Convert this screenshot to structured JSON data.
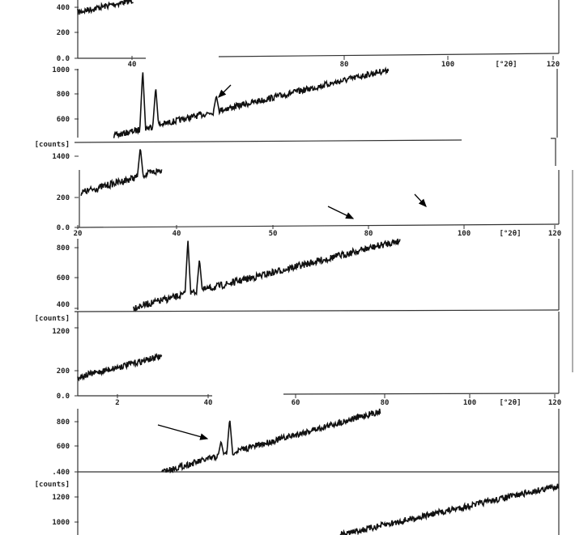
{
  "chart_data": {
    "type": "line",
    "xlabel": "[°2θ]",
    "ylabel": "[counts]",
    "xlim": [
      20,
      120
    ],
    "grid": false,
    "panels": [
      {
        "yticks": [
          "400",
          "200",
          "0.0"
        ],
        "xticks": [
          "40",
          "80",
          "100",
          "120"
        ],
        "xunit": "[°2θ]",
        "trace": {
          "x": [
            20,
            31.6
          ],
          "y": [
            362,
            457
          ]
        },
        "peaks": []
      },
      {
        "yticks": [
          "1000",
          "800",
          "600"
        ],
        "trace": {
          "x": [
            27.4,
            84.6
          ],
          "y": [
            462,
            1000
          ]
        },
        "peaks": [
          {
            "x": 33.5,
            "y": 1000
          },
          {
            "x": 36.2,
            "y": 860
          },
          {
            "x": 48.8,
            "y": 790
          }
        ],
        "arrows": 1
      },
      {
        "ylabel": "[counts]",
        "yticks": [
          "1400",
          "200",
          "0.0"
        ],
        "xticks": [
          "20",
          "40",
          "50",
          "80",
          "100",
          "120"
        ],
        "xunit": "[°2θ]",
        "trace": {
          "x": [
            20.7,
            37.5
          ],
          "y": [
            232,
            384
          ]
        },
        "peaks": [
          {
            "x": 33,
            "y": 535
          }
        ],
        "arrows": 2
      },
      {
        "yticks": [
          "800",
          "600",
          "400"
        ],
        "trace": {
          "x": [
            31.6,
            87
          ],
          "y": [
            405,
            848
          ]
        },
        "peaks": [
          {
            "x": 42.9,
            "y": 853
          },
          {
            "x": 45.3,
            "y": 725
          }
        ]
      },
      {
        "ylabel": "[counts]",
        "yticks": [
          "1200",
          "200",
          "0.0"
        ],
        "xticks": [
          "2",
          "40",
          "60",
          "80",
          "100",
          "120"
        ],
        "xunit": "[°2θ]",
        "trace": {
          "x": [
            20,
            37.5
          ],
          "y": [
            148,
            316
          ]
        },
        "peaks": []
      },
      {
        "yticks": [
          "800",
          "600",
          ".400"
        ],
        "trace": {
          "x": [
            37.5,
            83
          ],
          "y": [
            400,
            884
          ]
        },
        "peaks": [
          {
            "x": 51.6,
            "y": 826
          },
          {
            "x": 49.8,
            "y": 645
          }
        ],
        "arrows": 1
      },
      {
        "ylabel": "[counts]",
        "yticks": [
          "1200",
          "1000"
        ],
        "trace": {
          "x": [
            74.5,
            120
          ],
          "y": [
            897,
            1290
          ]
        },
        "peaks": []
      }
    ]
  }
}
